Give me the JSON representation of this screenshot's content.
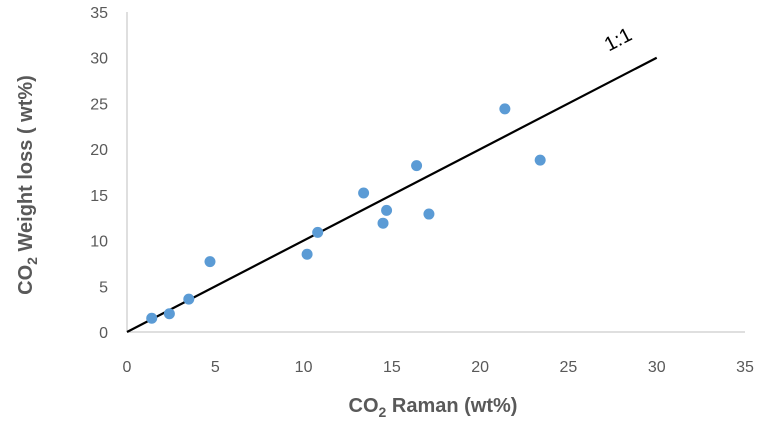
{
  "chart_data": {
    "type": "scatter",
    "xlabel_main": "CO",
    "xlabel_sub": "2",
    "xlabel_rest": " Raman (wt%)",
    "ylabel_main": "CO",
    "ylabel_sub": "2",
    "ylabel_rest": " Weight loss ( wt%)",
    "xlim": [
      0,
      35
    ],
    "ylim": [
      0,
      35
    ],
    "xticks": [
      "0",
      "5",
      "10",
      "15",
      "20",
      "25",
      "30",
      "35"
    ],
    "yticks": [
      "0",
      "5",
      "10",
      "15",
      "20",
      "25",
      "30",
      "35"
    ],
    "grid": false,
    "point_color": "#5b9bd5",
    "line_color": "#000000",
    "reference_line": {
      "label": "1:1",
      "x": [
        0,
        30
      ],
      "y": [
        0,
        30
      ]
    },
    "points": [
      {
        "x": 1.4,
        "y": 1.5
      },
      {
        "x": 2.4,
        "y": 2.0
      },
      {
        "x": 3.5,
        "y": 3.6
      },
      {
        "x": 4.7,
        "y": 7.7
      },
      {
        "x": 10.2,
        "y": 8.5
      },
      {
        "x": 10.8,
        "y": 10.9
      },
      {
        "x": 13.4,
        "y": 15.2
      },
      {
        "x": 14.5,
        "y": 11.9
      },
      {
        "x": 14.7,
        "y": 13.3
      },
      {
        "x": 16.4,
        "y": 18.2
      },
      {
        "x": 17.1,
        "y": 12.9
      },
      {
        "x": 21.4,
        "y": 24.4
      },
      {
        "x": 23.4,
        "y": 18.8
      }
    ]
  }
}
